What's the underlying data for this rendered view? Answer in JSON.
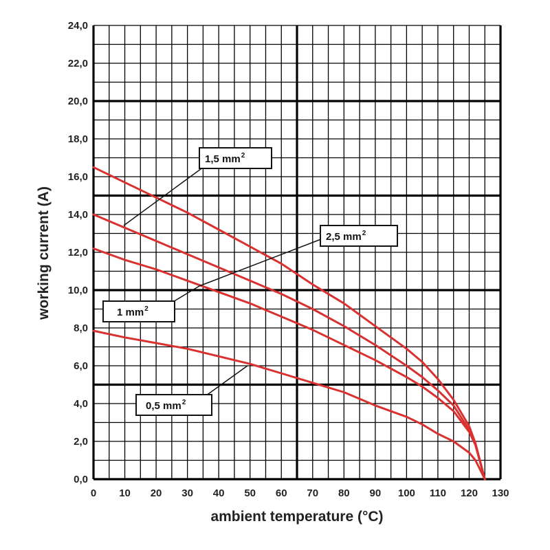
{
  "chart_data": {
    "type": "line",
    "xlabel": "ambient temperature (°C)",
    "ylabel": "working current (A)",
    "xlim": [
      0,
      130
    ],
    "ylim": [
      0,
      24
    ],
    "x_ticks": [
      "0",
      "10",
      "20",
      "30",
      "40",
      "50",
      "60",
      "70",
      "80",
      "90",
      "100",
      "110",
      "120",
      "130"
    ],
    "y_ticks": [
      "0,0",
      "2,0",
      "4,0",
      "6,0",
      "8,0",
      "10,0",
      "12,0",
      "14,0",
      "16,0",
      "18,0",
      "20,0",
      "22,0",
      "24,0"
    ],
    "grid": true,
    "line_color": "#d93030",
    "series": [
      {
        "name": "1,5 mm",
        "unit_sup": "2",
        "x": [
          0,
          10,
          20,
          30,
          40,
          50,
          60,
          70,
          80,
          90,
          100,
          105,
          110,
          115,
          120,
          122,
          125
        ],
        "y": [
          16.5,
          15.7,
          14.9,
          14.1,
          13.2,
          12.3,
          11.4,
          10.3,
          9.3,
          8.1,
          6.9,
          6.2,
          5.3,
          4.2,
          2.8,
          1.9,
          0.0
        ]
      },
      {
        "name": "2,5 mm",
        "unit_sup": "2",
        "x": [
          0,
          10,
          20,
          30,
          40,
          50,
          60,
          70,
          80,
          90,
          100,
          105,
          110,
          115,
          120,
          122,
          125
        ],
        "y": [
          14.0,
          13.3,
          12.6,
          11.9,
          11.2,
          10.5,
          9.8,
          9.0,
          8.1,
          7.1,
          6.0,
          5.4,
          4.7,
          3.9,
          2.6,
          1.8,
          0.0
        ]
      },
      {
        "name": "1 mm",
        "unit_sup": "2",
        "x": [
          0,
          10,
          20,
          30,
          40,
          50,
          60,
          70,
          80,
          90,
          100,
          105,
          110,
          115,
          120,
          122,
          125
        ],
        "y": [
          12.2,
          11.6,
          11.1,
          10.5,
          9.9,
          9.3,
          8.6,
          7.9,
          7.1,
          6.3,
          5.4,
          4.9,
          4.3,
          3.6,
          2.5,
          1.8,
          0.0
        ]
      },
      {
        "name": "0,5 mm",
        "unit_sup": "2",
        "x": [
          0,
          10,
          20,
          30,
          40,
          50,
          60,
          70,
          80,
          90,
          100,
          105,
          110,
          115,
          120,
          122,
          125
        ],
        "y": [
          7.85,
          7.5,
          7.2,
          6.9,
          6.5,
          6.1,
          5.6,
          5.1,
          4.6,
          3.9,
          3.3,
          2.9,
          2.4,
          2.0,
          1.4,
          1.0,
          0.0
        ]
      }
    ]
  }
}
